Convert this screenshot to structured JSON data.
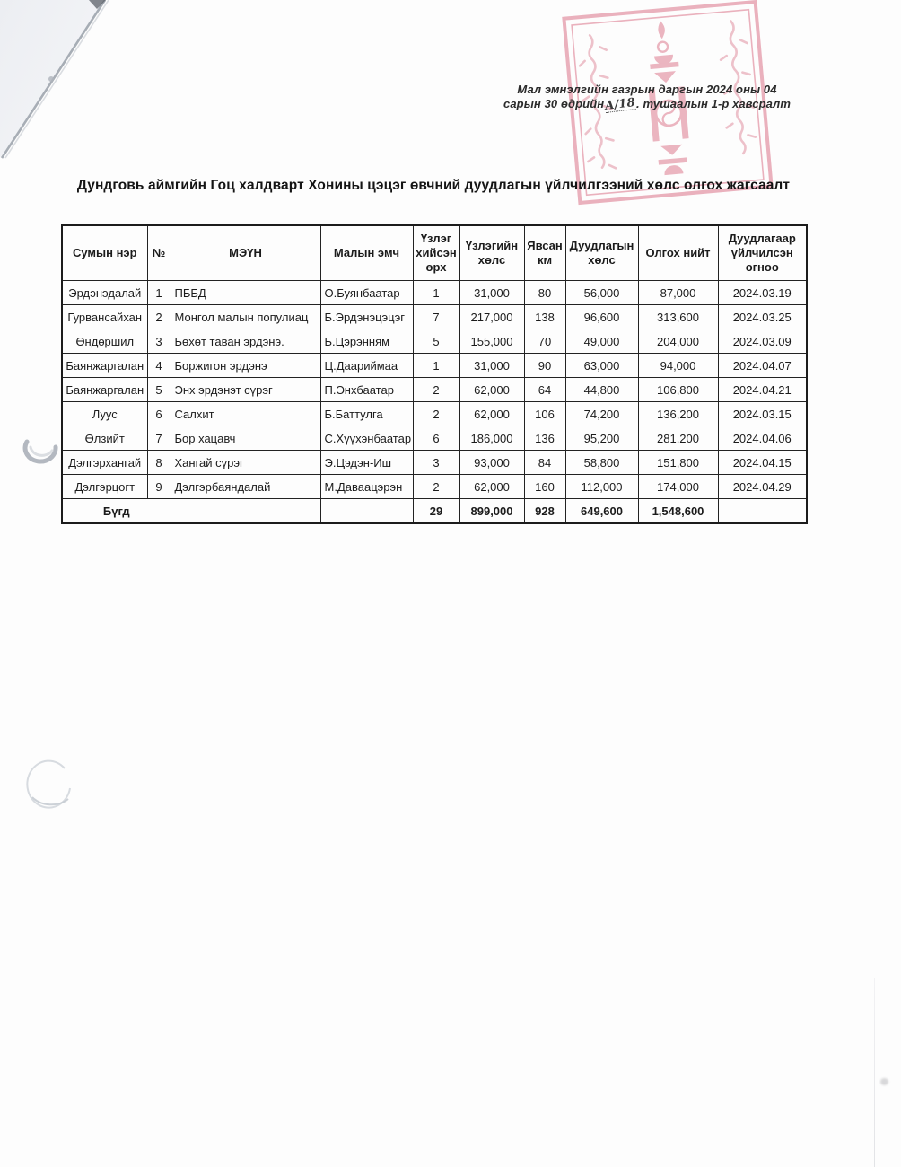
{
  "note": {
    "line1": "Мал эмнэлгийн газрын даргын 2024 оны 04",
    "line2_prefix": "сарын 30 өдрийн",
    "handwritten": "А/18",
    "line2_suffix": ". тушаалын 1-р хавсралт"
  },
  "title": "Дундговь аймгийн Гоц халдварт Хонины цэцэг өвчний дуудлагын үйлчилгээний хөлс олгох жагсаалт",
  "stamp": {
    "color": "#d96a81",
    "description": "official-red-stamp-with-soyombo-emblem"
  },
  "table": {
    "headers": [
      "Сумын нэр",
      "№",
      "МЭҮН",
      "Малын эмч",
      "Үзлэг хийсэн өрх",
      "Үзлэгийн хөлс",
      "Явсан км",
      "Дуудлагын хөлс",
      "Олгох нийт",
      "Дуудлагаар үйлчилсэн огноо"
    ],
    "rows": [
      {
        "sum": "Эрдэнэдалай",
        "no": "1",
        "meun": "ПББД",
        "vet": "О.Буянбаатар",
        "households": "1",
        "exam_fee": "31,000",
        "km": "80",
        "call_fee": "56,000",
        "total": "87,000",
        "date": "2024.03.19"
      },
      {
        "sum": "Гурвансайхан",
        "no": "2",
        "meun": "Монгол малын популиац",
        "vet": "Б.Эрдэнэцэцэг",
        "households": "7",
        "exam_fee": "217,000",
        "km": "138",
        "call_fee": "96,600",
        "total": "313,600",
        "date": "2024.03.25"
      },
      {
        "sum": "Өндөршил",
        "no": "3",
        "meun": "Бөхөт таван эрдэнэ.",
        "vet": "Б.Цэрэнням",
        "households": "5",
        "exam_fee": "155,000",
        "km": "70",
        "call_fee": "49,000",
        "total": "204,000",
        "date": "2024.03.09"
      },
      {
        "sum": "Баянжаргалан",
        "no": "4",
        "meun": "Боржигон эрдэнэ",
        "vet": "Ц.Даариймаа",
        "households": "1",
        "exam_fee": "31,000",
        "km": "90",
        "call_fee": "63,000",
        "total": "94,000",
        "date": "2024.04.07"
      },
      {
        "sum": "Баянжаргалан",
        "no": "5",
        "meun": "Энх эрдэнэт сүрэг",
        "vet": "П.Энхбаатар",
        "households": "2",
        "exam_fee": "62,000",
        "km": "64",
        "call_fee": "44,800",
        "total": "106,800",
        "date": "2024.04.21"
      },
      {
        "sum": "Луус",
        "no": "6",
        "meun": "Салхит",
        "vet": "Б.Баттулга",
        "households": "2",
        "exam_fee": "62,000",
        "km": "106",
        "call_fee": "74,200",
        "total": "136,200",
        "date": "2024.03.15"
      },
      {
        "sum": "Өлзийт",
        "no": "7",
        "meun": "Бор хацавч",
        "vet": "С.Хүүхэнбаатар",
        "households": "6",
        "exam_fee": "186,000",
        "km": "136",
        "call_fee": "95,200",
        "total": "281,200",
        "date": "2024.04.06"
      },
      {
        "sum": "Дэлгэрхангай",
        "no": "8",
        "meun": "Хангай сүрэг",
        "vet": "Э.Цэдэн-Иш",
        "households": "3",
        "exam_fee": "93,000",
        "km": "84",
        "call_fee": "58,800",
        "total": "151,800",
        "date": "2024.04.15"
      },
      {
        "sum": "Дэлгэрцогт",
        "no": "9",
        "meun": "Дэлгэрбаяндалай",
        "vet": "М.Даваацэрэн",
        "households": "2",
        "exam_fee": "62,000",
        "km": "160",
        "call_fee": "112,000",
        "total": "174,000",
        "date": "2024.04.29"
      }
    ],
    "total": {
      "label": "Бүгд",
      "households": "29",
      "exam_fee": "899,000",
      "km": "928",
      "call_fee": "649,600",
      "grand_total": "1,548,600"
    }
  }
}
